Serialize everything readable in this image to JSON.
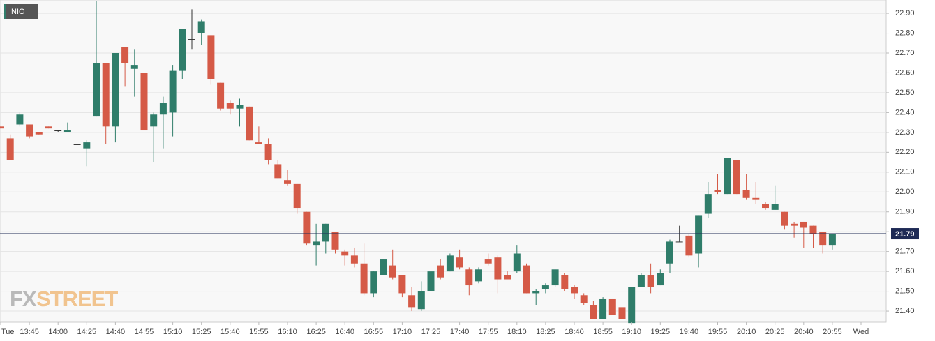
{
  "chart_data": {
    "type": "candlestick",
    "symbol": "NIO",
    "brand_left": "FX",
    "brand_right": "STREET",
    "colors": {
      "up": "#2f7d6a",
      "down": "#d55a47",
      "last": "#1e2a55"
    },
    "last_price": {
      "value": 21.79,
      "label": "21.79"
    },
    "categories": [
      "Tue",
      null,
      null,
      "13:45",
      null,
      null,
      "14:00",
      null,
      null,
      "14:25",
      null,
      null,
      "14:40",
      null,
      null,
      "14:55",
      null,
      null,
      "15:10",
      null,
      null,
      "15:25",
      null,
      null,
      "15:40",
      null,
      null,
      "15:55",
      null,
      null,
      "16:10",
      null,
      null,
      "16:25",
      null,
      null,
      "16:40",
      null,
      null,
      "16:55",
      null,
      null,
      "17:10",
      null,
      null,
      "17:25",
      null,
      null,
      "17:40",
      null,
      null,
      "17:55",
      null,
      null,
      "18:10",
      null,
      null,
      "18:25",
      null,
      null,
      "18:40",
      null,
      null,
      "18:55",
      null,
      null,
      "19:10",
      null,
      null,
      "19:25",
      null,
      null,
      "19:40",
      null,
      null,
      "19:55",
      null,
      null,
      "20:10",
      null,
      null,
      "20:25",
      null,
      null,
      "20:40",
      null,
      null,
      "20:55",
      null,
      null,
      "Wed"
    ],
    "open": [
      22.33,
      22.27,
      22.34,
      22.34,
      22.3,
      22.33,
      22.31,
      22.3,
      22.24,
      22.22,
      22.38,
      22.65,
      22.33,
      22.73,
      22.62,
      22.6,
      22.33,
      22.39,
      22.4,
      22.61,
      22.77,
      22.8,
      22.79,
      22.55,
      22.45,
      22.42,
      22.43,
      22.25,
      22.24,
      22.14,
      22.06,
      22.04,
      21.9,
      21.73,
      21.75,
      21.8,
      21.7,
      21.68,
      21.64,
      21.49,
      21.58,
      21.63,
      21.58,
      21.48,
      21.41,
      21.5,
      21.63,
      21.6,
      21.67,
      21.61,
      21.55,
      21.66,
      21.67,
      21.58,
      21.6,
      21.63,
      21.49,
      21.51,
      21.53,
      21.58,
      21.52,
      21.48,
      21.43,
      21.36,
      21.46,
      21.42,
      21.34,
      21.52,
      21.58,
      21.53,
      21.64,
      21.75,
      21.78,
      21.69,
      21.89,
      22.01,
      21.99,
      22.16,
      22.01,
      21.97,
      21.94,
      21.91,
      21.9,
      21.84,
      21.85,
      21.83,
      21.8,
      21.73,
      null,
      null,
      null
    ],
    "high": [
      22.33,
      22.29,
      22.4,
      22.34,
      22.3,
      22.33,
      22.31,
      22.35,
      22.24,
      22.26,
      22.96,
      22.65,
      22.7,
      22.73,
      22.72,
      22.6,
      22.4,
      22.48,
      22.64,
      22.82,
      22.92,
      22.87,
      22.79,
      22.55,
      22.46,
      22.47,
      22.43,
      22.33,
      22.27,
      22.16,
      22.11,
      22.04,
      21.9,
      21.84,
      21.84,
      21.8,
      21.71,
      21.72,
      21.74,
      21.6,
      21.66,
      21.71,
      21.58,
      21.52,
      21.55,
      21.64,
      21.66,
      21.69,
      21.71,
      21.62,
      21.62,
      21.69,
      21.68,
      21.6,
      21.73,
      21.64,
      21.51,
      21.54,
      21.61,
      21.59,
      21.53,
      21.49,
      21.45,
      21.47,
      21.46,
      21.43,
      21.52,
      21.59,
      21.64,
      21.61,
      21.76,
      21.83,
      21.79,
      21.88,
      22.05,
      22.09,
      22.17,
      22.16,
      22.09,
      22.05,
      21.95,
      22.03,
      21.9,
      21.85,
      21.85,
      21.83,
      21.8,
      21.79,
      null,
      null,
      null
    ],
    "low": [
      22.32,
      22.16,
      22.33,
      22.27,
      22.29,
      22.32,
      22.3,
      22.3,
      22.24,
      22.13,
      22.38,
      22.24,
      22.25,
      22.53,
      22.48,
      22.31,
      22.15,
      22.22,
      22.28,
      22.57,
      22.72,
      22.74,
      22.54,
      22.41,
      22.39,
      22.33,
      22.26,
      22.24,
      22.14,
      22.07,
      22.03,
      21.89,
      21.73,
      21.63,
      21.69,
      21.69,
      21.63,
      21.62,
      21.48,
      21.47,
      21.58,
      21.56,
      21.47,
      21.4,
      21.4,
      21.49,
      21.56,
      21.6,
      21.61,
      21.48,
      21.54,
      21.63,
      21.49,
      21.56,
      21.59,
      21.49,
      21.43,
      21.49,
      21.52,
      21.5,
      21.46,
      21.43,
      21.36,
      21.36,
      21.38,
      21.35,
      21.34,
      21.52,
      21.49,
      21.53,
      21.59,
      21.75,
      21.67,
      21.62,
      21.87,
      21.99,
      21.99,
      21.99,
      21.96,
      21.94,
      21.91,
      21.91,
      21.81,
      21.77,
      21.72,
      21.72,
      21.69,
      21.71,
      null,
      null,
      null
    ],
    "close": [
      22.32,
      22.16,
      22.39,
      22.28,
      22.29,
      22.32,
      22.31,
      22.31,
      22.24,
      22.25,
      22.65,
      22.33,
      22.7,
      22.65,
      22.64,
      22.31,
      22.39,
      22.45,
      22.61,
      22.82,
      22.77,
      22.86,
      22.57,
      22.42,
      22.42,
      22.44,
      22.26,
      22.24,
      22.16,
      22.07,
      22.04,
      21.92,
      21.74,
      21.75,
      21.84,
      21.71,
      21.68,
      21.64,
      21.49,
      21.6,
      21.66,
      21.57,
      21.49,
      21.42,
      21.5,
      21.6,
      21.57,
      21.68,
      21.62,
      21.53,
      21.61,
      21.64,
      21.56,
      21.56,
      21.69,
      21.49,
      21.5,
      21.53,
      21.61,
      21.51,
      21.49,
      21.44,
      21.36,
      21.46,
      21.38,
      21.36,
      21.52,
      21.58,
      21.52,
      21.59,
      21.75,
      21.75,
      21.68,
      21.88,
      21.99,
      22.0,
      22.17,
      21.99,
      21.97,
      21.96,
      21.92,
      21.94,
      21.83,
      21.83,
      21.82,
      21.79,
      21.73,
      21.79,
      null,
      null,
      null
    ],
    "ylim": [
      21.344,
      22.967
    ],
    "yticks": [
      {
        "value": 21.4,
        "label": "21.40"
      },
      {
        "value": 21.5,
        "label": "21.50"
      },
      {
        "value": 21.6,
        "label": "21.60"
      },
      {
        "value": 21.7,
        "label": "21.70"
      },
      {
        "value": 21.8,
        "label": "21.80"
      },
      {
        "value": 21.9,
        "label": "21.90"
      },
      {
        "value": 22.0,
        "label": "22.00"
      },
      {
        "value": 22.1,
        "label": "22.10"
      },
      {
        "value": 22.2,
        "label": "22.20"
      },
      {
        "value": 22.3,
        "label": "22.30"
      },
      {
        "value": 22.4,
        "label": "22.40"
      },
      {
        "value": 22.5,
        "label": "22.50"
      },
      {
        "value": 22.6,
        "label": "22.60"
      },
      {
        "value": 22.7,
        "label": "22.70"
      },
      {
        "value": 22.8,
        "label": "22.80"
      },
      {
        "value": 22.9,
        "label": "22.90"
      }
    ],
    "grid": true
  }
}
